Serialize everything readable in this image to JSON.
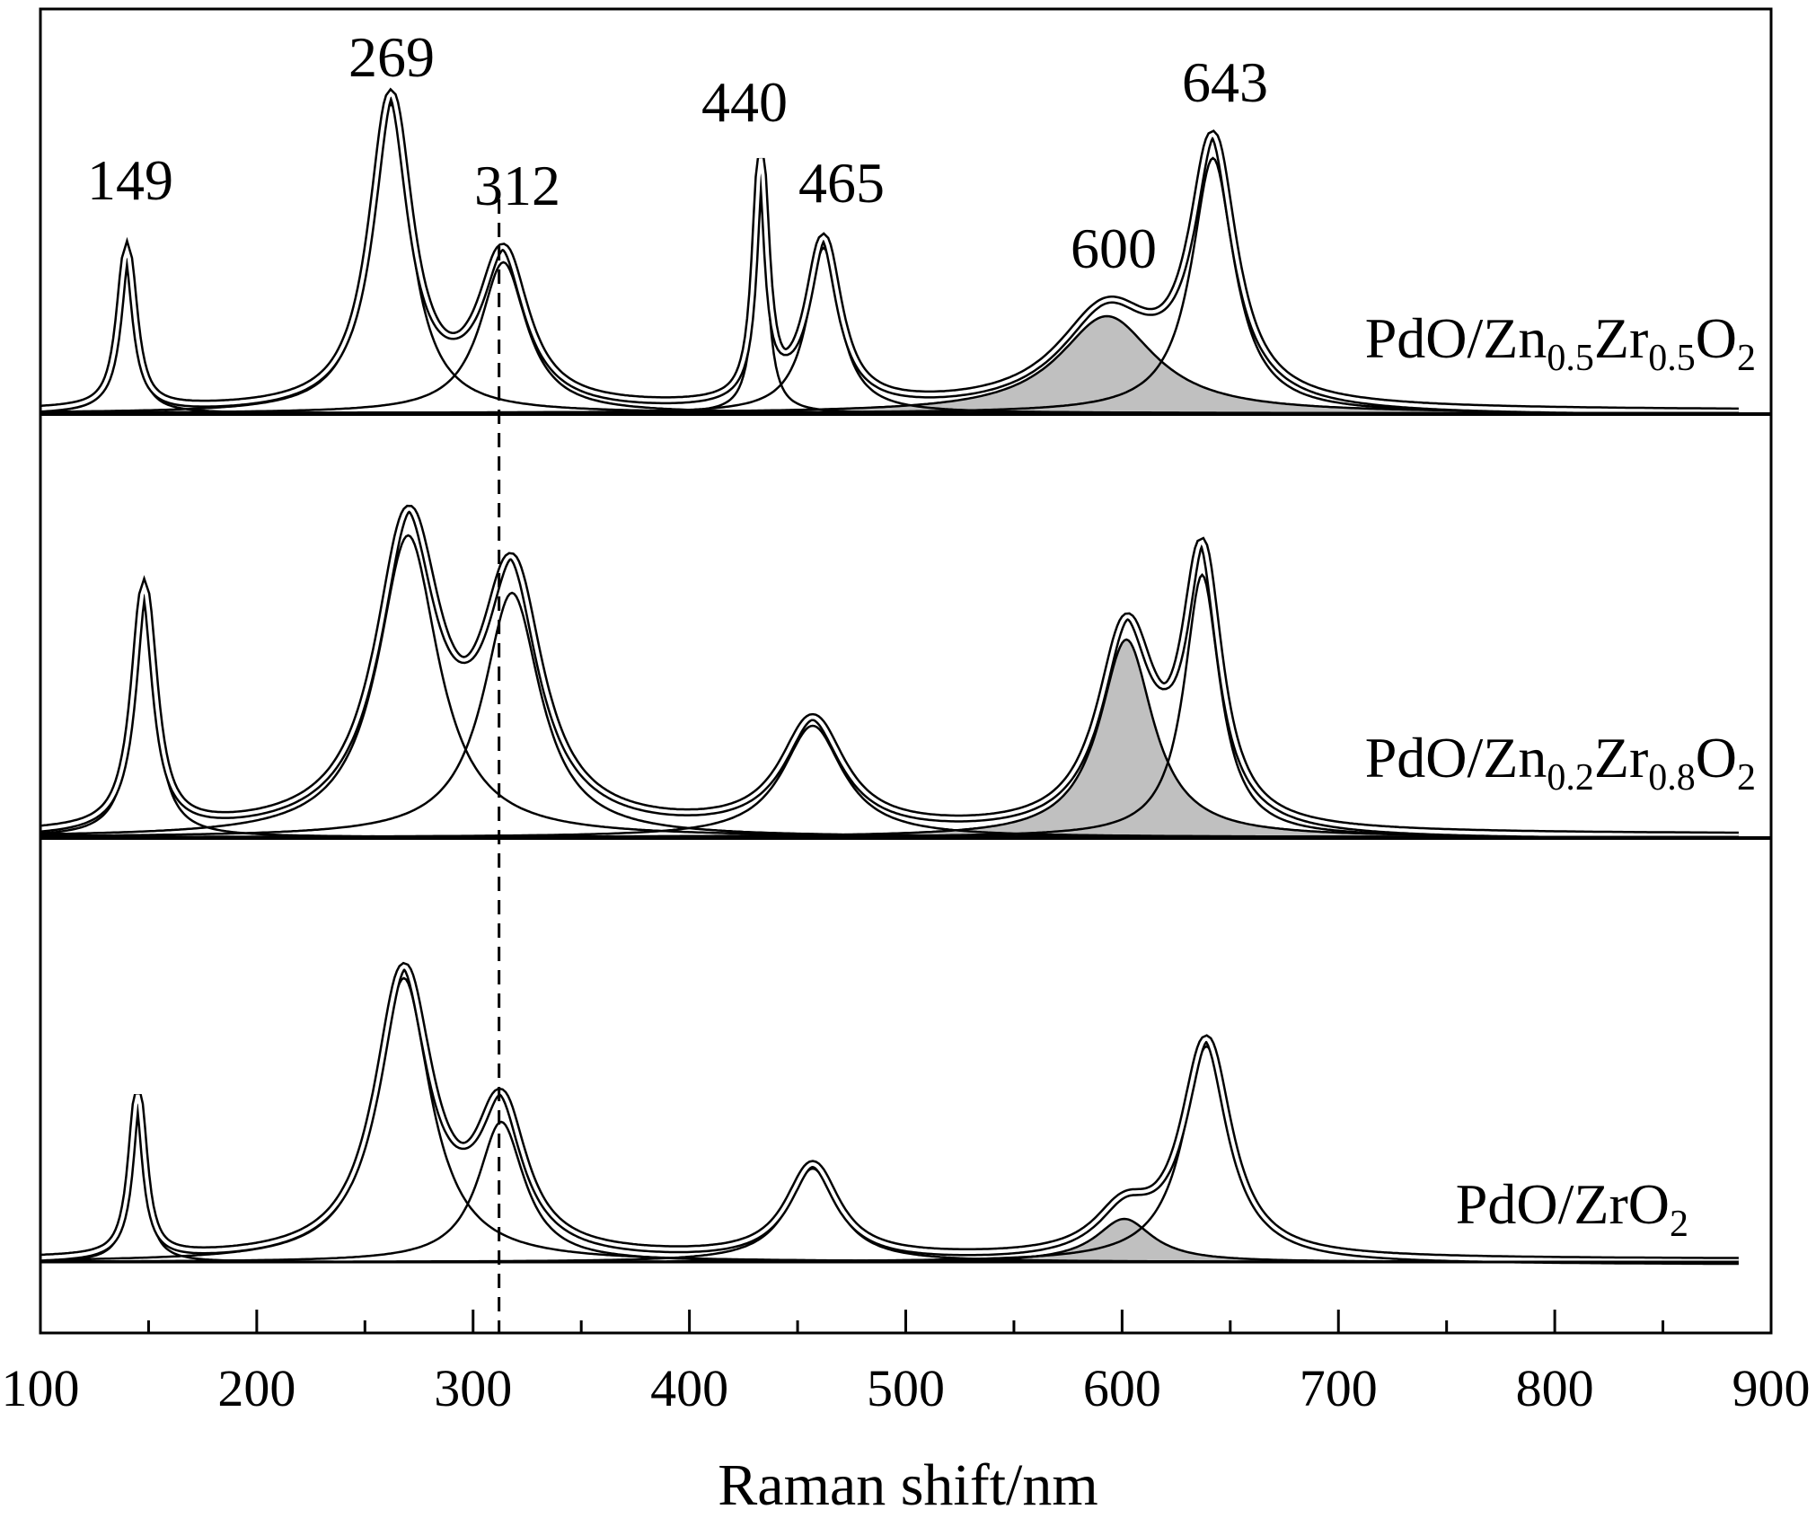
{
  "chart_data": {
    "type": "line",
    "title": "",
    "xlabel": "Raman shift/nm",
    "ylabel": "",
    "xlim": [
      100,
      900
    ],
    "x_ticks": [
      100,
      200,
      300,
      400,
      500,
      600,
      700,
      800,
      900
    ],
    "x_minor_step": 50,
    "reference_line_x": 312,
    "shaded_component_color": "#c0c0c0",
    "line_color": "#000000",
    "peak_labels": [
      {
        "text": "149",
        "x": 149
      },
      {
        "text": "269",
        "x": 269
      },
      {
        "text": "312",
        "x": 312
      },
      {
        "text": "440",
        "x": 440
      },
      {
        "text": "465",
        "x": 465
      },
      {
        "text": "600",
        "x": 600
      },
      {
        "text": "643",
        "x": 643
      }
    ],
    "panels": [
      {
        "id": "zn05",
        "label_parts": [
          {
            "text": "PdO/Zn",
            "sub": false
          },
          {
            "text": "0.5",
            "sub": true
          },
          {
            "text": "Zr",
            "sub": false
          },
          {
            "text": "0.5",
            "sub": true
          },
          {
            "text": "O",
            "sub": false
          },
          {
            "text": "2",
            "sub": true
          }
        ],
        "components": [
          {
            "center": 140,
            "amplitude": 0.44,
            "hwhm": 4.5,
            "shaded": false
          },
          {
            "center": 262,
            "amplitude": 0.86,
            "hwhm": 11,
            "shaded": false
          },
          {
            "center": 314,
            "amplitude": 0.42,
            "hwhm": 13,
            "shaded": false
          },
          {
            "center": 433,
            "amplitude": 0.65,
            "hwhm": 3.5,
            "shaded": false
          },
          {
            "center": 462,
            "amplitude": 0.46,
            "hwhm": 9,
            "shaded": false
          },
          {
            "center": 593,
            "amplitude": 0.27,
            "hwhm": 27,
            "shaded": true
          },
          {
            "center": 642,
            "amplitude": 0.71,
            "hwhm": 12,
            "shaded": false
          }
        ]
      },
      {
        "id": "zn02",
        "label_parts": [
          {
            "text": "PdO/Zn",
            "sub": false
          },
          {
            "text": "0.2",
            "sub": true
          },
          {
            "text": "Zr",
            "sub": false
          },
          {
            "text": "0.8",
            "sub": true
          },
          {
            "text": "O",
            "sub": false
          },
          {
            "text": "2",
            "sub": true
          }
        ],
        "components": [
          {
            "center": 148,
            "amplitude": 0.67,
            "hwhm": 6,
            "shaded": false
          },
          {
            "center": 270,
            "amplitude": 0.84,
            "hwhm": 17,
            "shaded": false
          },
          {
            "center": 318,
            "amplitude": 0.68,
            "hwhm": 16,
            "shaded": false
          },
          {
            "center": 457,
            "amplitude": 0.31,
            "hwhm": 17,
            "shaded": false
          },
          {
            "center": 602,
            "amplitude": 0.55,
            "hwhm": 15,
            "shaded": true
          },
          {
            "center": 637,
            "amplitude": 0.73,
            "hwhm": 10,
            "shaded": false
          }
        ]
      },
      {
        "id": "zro2",
        "label_parts": [
          {
            "text": "PdO/ZrO",
            "sub": false
          },
          {
            "text": "2",
            "sub": true
          }
        ],
        "components": [
          {
            "center": 145,
            "amplitude": 0.45,
            "hwhm": 4,
            "shaded": false
          },
          {
            "center": 268,
            "amplitude": 0.79,
            "hwhm": 15,
            "shaded": false
          },
          {
            "center": 313,
            "amplitude": 0.39,
            "hwhm": 13,
            "shaded": false
          },
          {
            "center": 457,
            "amplitude": 0.26,
            "hwhm": 14,
            "shaded": false
          },
          {
            "center": 601,
            "amplitude": 0.12,
            "hwhm": 16,
            "shaded": true
          },
          {
            "center": 639,
            "amplitude": 0.6,
            "hwhm": 13,
            "shaded": false
          }
        ]
      }
    ]
  }
}
